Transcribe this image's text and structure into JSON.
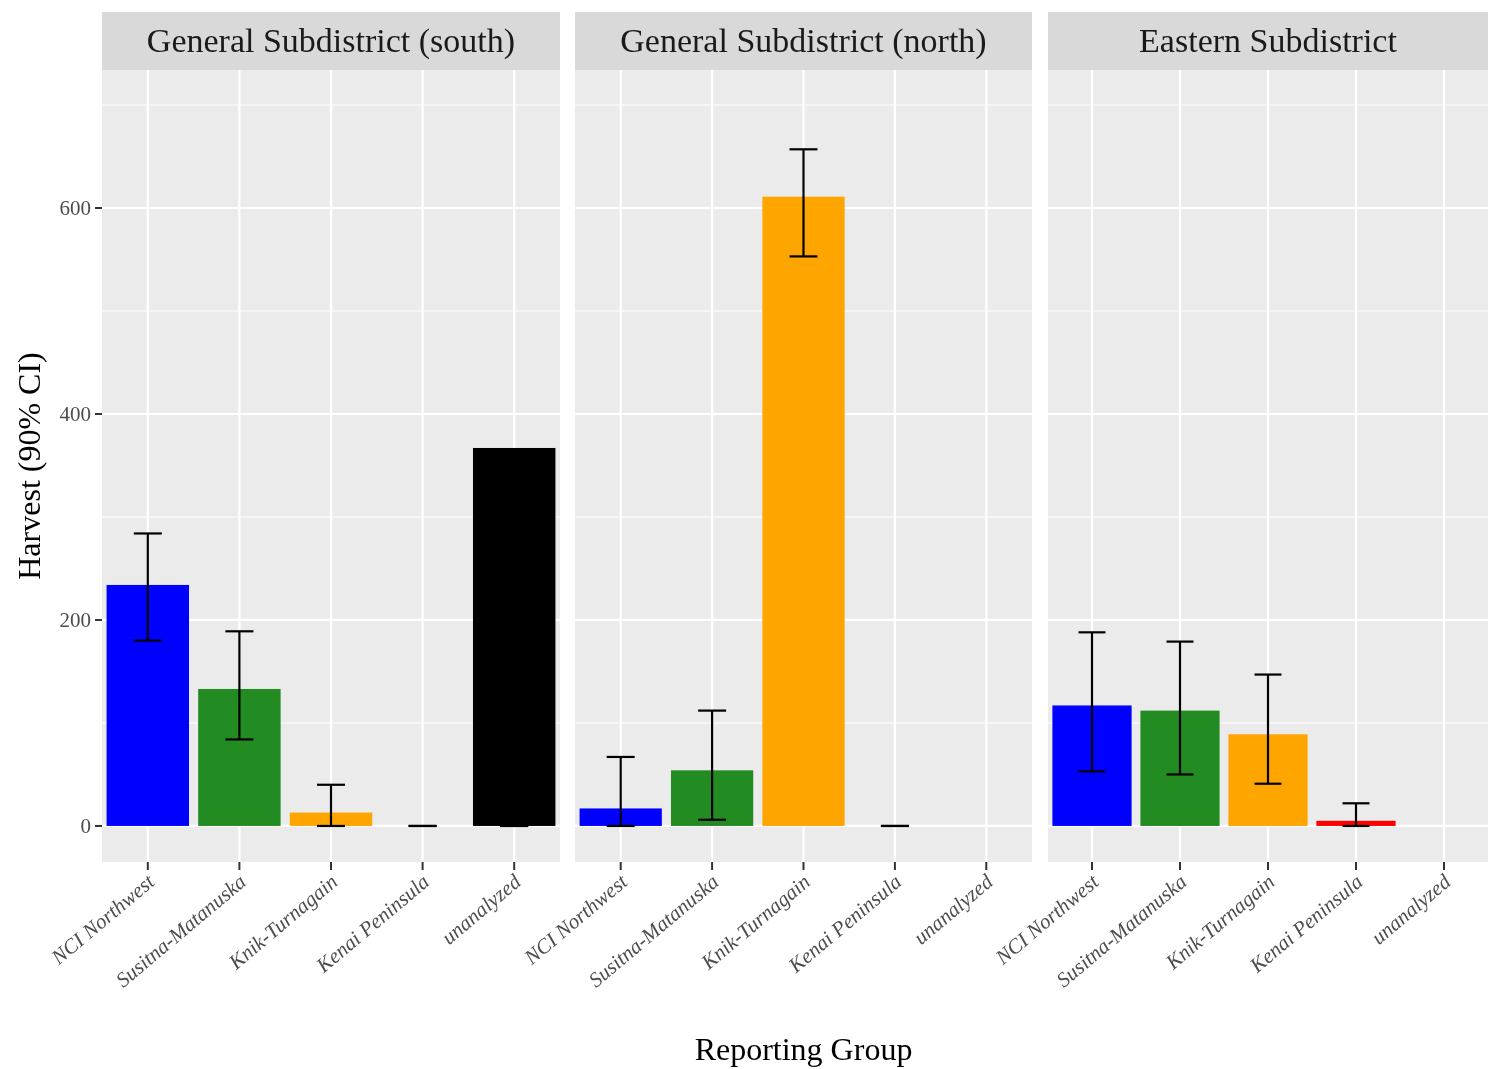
{
  "chart_data": [
    {
      "type": "bar",
      "title": "General Subdistrict (south)",
      "ylabel": "Harvest (90% CI)",
      "categories": [
        "NCI Northwest",
        "Susitna-Matanuska",
        "Knik-Turnagain",
        "Kenai Peninsula",
        "unanalyzed"
      ],
      "values": [
        234,
        133,
        13,
        0,
        367
      ],
      "colors": [
        "#0000ff",
        "#228b22",
        "#ffa500",
        "#ff0000",
        "#000000"
      ],
      "errors": [
        [
          180,
          284
        ],
        [
          84,
          189
        ],
        [
          0,
          40
        ],
        [
          0,
          0
        ],
        [
          0,
          0
        ]
      ],
      "ylim": [
        -35,
        734
      ],
      "yticks": [
        0,
        {
          "value": 100,
          "label": null
        },
        200,
        {
          "value": 300,
          "label": null
        },
        400,
        {
          "value": 500,
          "label": null
        },
        600,
        {
          "value": 700,
          "label": null
        }
      ],
      "grid": true
    },
    {
      "type": "bar",
      "title": "General Subdistrict (north)",
      "xlabel": "Reporting Group",
      "categories": [
        "NCI Northwest",
        "Susitna-Matanuska",
        "Knik-Turnagain",
        "Kenai Peninsula",
        "unanalyzed"
      ],
      "values": [
        17,
        54,
        611,
        0,
        null
      ],
      "colors": [
        "#0000ff",
        "#228b22",
        "#ffa500",
        "#ff0000",
        null
      ],
      "errors": [
        [
          0,
          67
        ],
        [
          6,
          112
        ],
        [
          553,
          657
        ],
        [
          0,
          0
        ],
        null
      ],
      "ylim": [
        -35,
        734
      ],
      "yticks": [
        0,
        {
          "value": 100,
          "label": null
        },
        200,
        {
          "value": 300,
          "label": null
        },
        400,
        {
          "value": 500,
          "label": null
        },
        600,
        {
          "value": 700,
          "label": null
        }
      ],
      "grid": true,
      "tick_labels": "x"
    },
    {
      "type": "bar",
      "title": "Eastern Subdistrict",
      "categories": [
        "NCI Northwest",
        "Susitna-Matanuska",
        "Knik-Turnagain",
        "Kenai Peninsula",
        "unanalyzed"
      ],
      "values": [
        117,
        112,
        89,
        5,
        null
      ],
      "colors": [
        "#0000ff",
        "#228b22",
        "#ffa500",
        "#ff0000",
        null
      ],
      "errors": [
        [
          53,
          188
        ],
        [
          50,
          179
        ],
        [
          41,
          147
        ],
        [
          0,
          22
        ],
        null
      ],
      "ylim": [
        -35,
        734
      ],
      "yticks": [
        0,
        {
          "value": 100,
          "label": null
        },
        200,
        {
          "value": 300,
          "label": null
        },
        400,
        {
          "value": 500,
          "label": null
        },
        600,
        {
          "value": 700,
          "label": null
        }
      ],
      "grid": true,
      "tick_labels": "x"
    }
  ]
}
